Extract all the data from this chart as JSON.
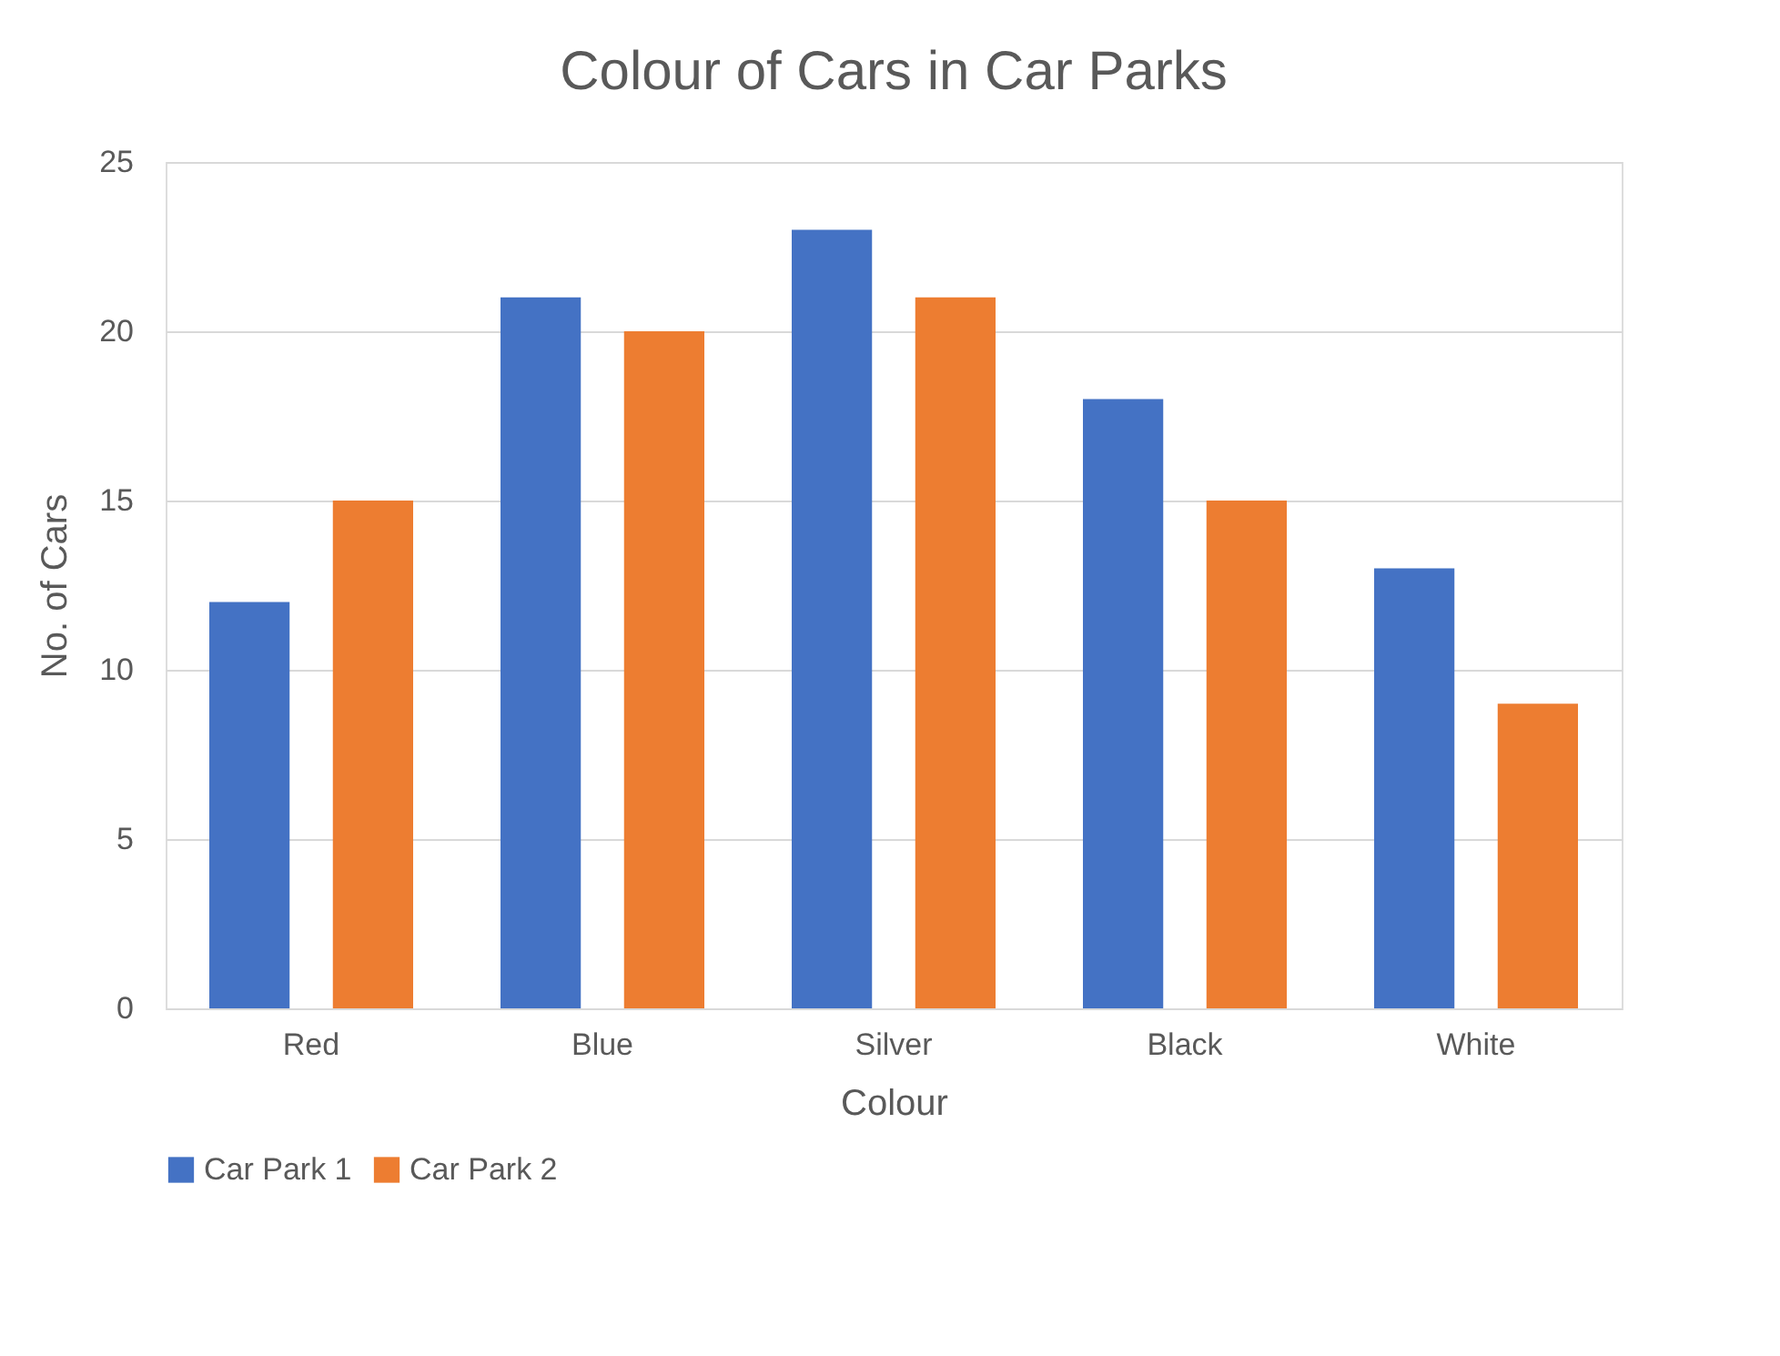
{
  "chart_data": {
    "type": "bar",
    "title": "Colour of Cars in Car Parks",
    "xlabel": "Colour",
    "ylabel": "No. of Cars",
    "categories": [
      "Red",
      "Blue",
      "Silver",
      "Black",
      "White"
    ],
    "series": [
      {
        "name": "Car Park 1",
        "color": "#4472c4",
        "values": [
          12,
          21,
          23,
          18,
          13
        ]
      },
      {
        "name": "Car Park 2",
        "color": "#ed7d31",
        "values": [
          15,
          20,
          21,
          15,
          9
        ]
      }
    ],
    "ylim": [
      0,
      25
    ],
    "yticks": [
      0,
      5,
      10,
      15,
      20,
      25
    ],
    "grid": "y",
    "legend": "bottom"
  }
}
